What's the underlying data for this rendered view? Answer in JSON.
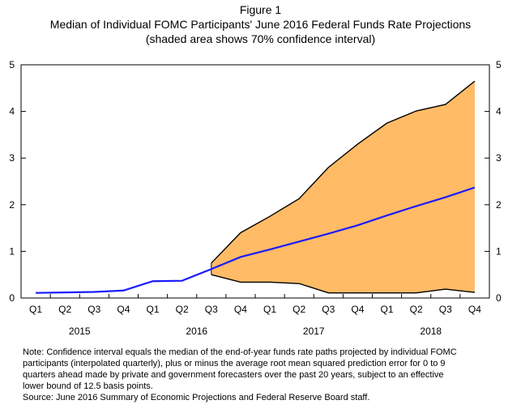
{
  "figure_label": "Figure 1",
  "chart_data": {
    "type": "area",
    "title": "Median of Individual FOMC Participants' June 2016 Federal Funds Rate Projections",
    "subtitle": "(shaded area shows 70% confidence interval)",
    "categories": [
      "Q1",
      "Q2",
      "Q3",
      "Q4",
      "Q1",
      "Q2",
      "Q3",
      "Q4",
      "Q1",
      "Q2",
      "Q3",
      "Q4",
      "Q1",
      "Q2",
      "Q3",
      "Q4"
    ],
    "year_labels": [
      {
        "label": "2015",
        "start": 0,
        "end": 3
      },
      {
        "label": "2016",
        "start": 4,
        "end": 7
      },
      {
        "label": "2017",
        "start": 8,
        "end": 11
      },
      {
        "label": "2018",
        "start": 12,
        "end": 15
      }
    ],
    "median": [
      0.11,
      0.12,
      0.13,
      0.16,
      0.36,
      0.37,
      0.62,
      0.88,
      1.04,
      1.21,
      1.38,
      1.56,
      1.77,
      1.97,
      2.16,
      2.37
    ],
    "band_start_index": 6,
    "band_upper": [
      0.75,
      1.4,
      1.75,
      2.13,
      2.8,
      3.3,
      3.75,
      4.01,
      4.15,
      4.65
    ],
    "band_lower": [
      0.5,
      0.34,
      0.34,
      0.31,
      0.11,
      0.11,
      0.11,
      0.11,
      0.19,
      0.12
    ],
    "ylim": [
      0,
      5
    ],
    "yticks": [
      "0",
      "1",
      "2",
      "3",
      "4",
      "5"
    ],
    "colors": {
      "median": "#1a1aff",
      "band": "#ffbb66",
      "band_edge": "#000000"
    }
  },
  "note": {
    "lines": [
      "Note:  Confidence interval equals the median of the end-of-year funds rate paths projected by individual FOMC",
      "participants (interpolated quarterly), plus or minus the average root mean squared prediction error for 0 to 9",
      "quarters ahead made by private and government forecasters over the past 20 years, subject to an effective",
      "lower bound of 12.5 basis points."
    ],
    "source": "Source:  June 2016 Summary of Economic Projections and Federal Reserve Board staff."
  }
}
